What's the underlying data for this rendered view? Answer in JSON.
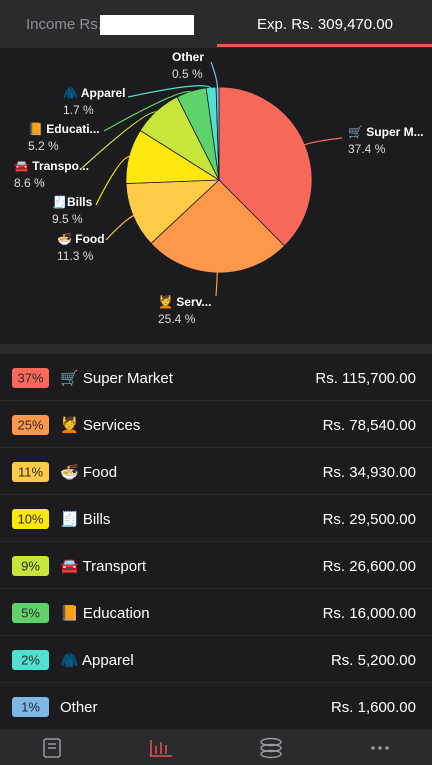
{
  "header": {
    "income_label": "Income Rs.",
    "expense_label": "Exp. Rs. 309,470.00"
  },
  "chart_data": {
    "type": "pie",
    "categories": [
      "🛒 Super M...",
      "💆 Serv...",
      "🍜 Food",
      "🧾Bills",
      "🚘 Transpo...",
      "📙 Educati...",
      "🧥 Apparel",
      "Other"
    ],
    "values": [
      37.4,
      25.4,
      11.3,
      9.5,
      8.6,
      5.2,
      1.7,
      0.5
    ],
    "value_labels": [
      "37.4 %",
      "25.4 %",
      "11.3 %",
      "9.5 %",
      "8.6 %",
      "5.2 %",
      "1.7 %",
      "0.5 %"
    ],
    "colors": [
      "#f9695b",
      "#fd984b",
      "#fdcb46",
      "#fde70c",
      "#c6e63b",
      "#5ed26b",
      "#4fe0cf",
      "#7db9e8"
    ]
  },
  "list": {
    "rows": [
      {
        "percent": "37%",
        "name": "🛒 Super Market",
        "amount": "Rs. 115,700.00"
      },
      {
        "percent": "25%",
        "name": "💆 Services",
        "amount": "Rs. 78,540.00"
      },
      {
        "percent": "11%",
        "name": "🍜 Food",
        "amount": "Rs. 34,930.00"
      },
      {
        "percent": "10%",
        "name": "🧾 Bills",
        "amount": "Rs. 29,500.00"
      },
      {
        "percent": "9%",
        "name": "🚘 Transport",
        "amount": "Rs. 26,600.00"
      },
      {
        "percent": "5%",
        "name": "📙 Education",
        "amount": "Rs. 16,000.00"
      },
      {
        "percent": "2%",
        "name": "🧥 Apparel",
        "amount": "Rs. 5,200.00"
      },
      {
        "percent": "1%",
        "name": "Other",
        "amount": "Rs. 1,600.00"
      }
    ]
  }
}
